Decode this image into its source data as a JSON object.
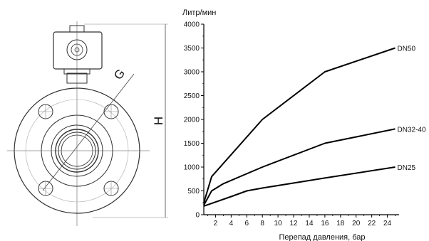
{
  "drawing": {
    "label_g": "G",
    "label_h": "H"
  },
  "chart_data": {
    "type": "line",
    "title": "",
    "ylabel": "Литр/мин",
    "xlabel": "Перепад давления, бар",
    "xlim": [
      0.5,
      25.5
    ],
    "ylim": [
      0,
      4000
    ],
    "xticks": [
      2,
      4,
      6,
      8,
      10,
      12,
      14,
      16,
      18,
      20,
      22,
      24
    ],
    "yticks": [
      0,
      500,
      1000,
      1500,
      2000,
      2500,
      3000,
      3500,
      4000
    ],
    "grid": false,
    "series": [
      {
        "name": "DN50",
        "x": [
          0.5,
          1.5,
          8,
          16,
          25
        ],
        "y": [
          250,
          800,
          2000,
          3000,
          3500
        ]
      },
      {
        "name": "DN32-40",
        "x": [
          0.5,
          1.5,
          3,
          8,
          16,
          25
        ],
        "y": [
          200,
          500,
          650,
          1000,
          1500,
          1800
        ]
      },
      {
        "name": "DN25",
        "x": [
          0.5,
          4,
          6,
          8,
          16,
          25
        ],
        "y": [
          180,
          380,
          500,
          560,
          770,
          1000
        ]
      }
    ]
  }
}
